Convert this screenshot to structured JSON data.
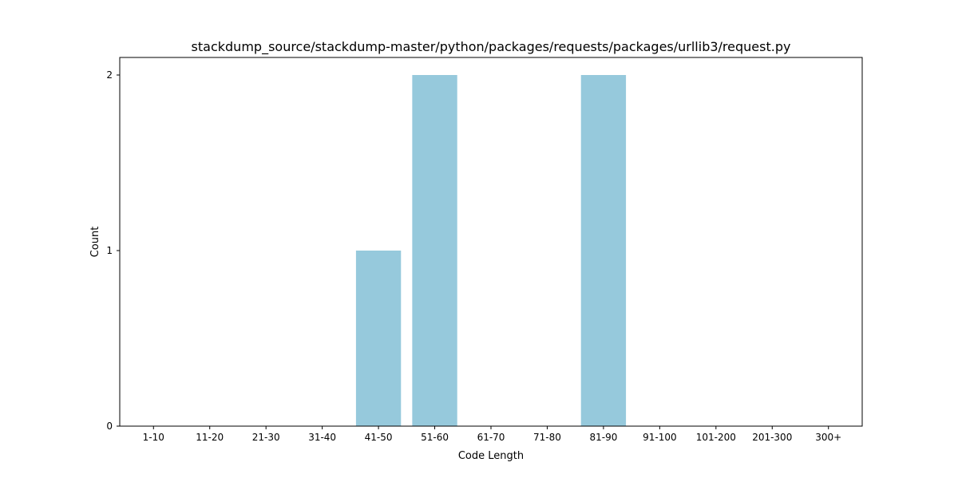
{
  "chart_data": {
    "type": "bar",
    "title": "stackdump_source/stackdump-master/python/packages/requests/packages/urllib3/request.py",
    "xlabel": "Code Length",
    "ylabel": "Count",
    "categories": [
      "1-10",
      "11-20",
      "21-30",
      "31-40",
      "41-50",
      "51-60",
      "61-70",
      "71-80",
      "81-90",
      "91-100",
      "101-200",
      "201-300",
      "300+"
    ],
    "values": [
      0,
      0,
      0,
      0,
      1,
      2,
      0,
      0,
      2,
      0,
      0,
      0,
      0
    ],
    "yticks": [
      0,
      1,
      2
    ],
    "ylim": [
      0,
      2.1
    ],
    "bar_color": "#96c9dc",
    "grid": false,
    "legend": "none"
  }
}
